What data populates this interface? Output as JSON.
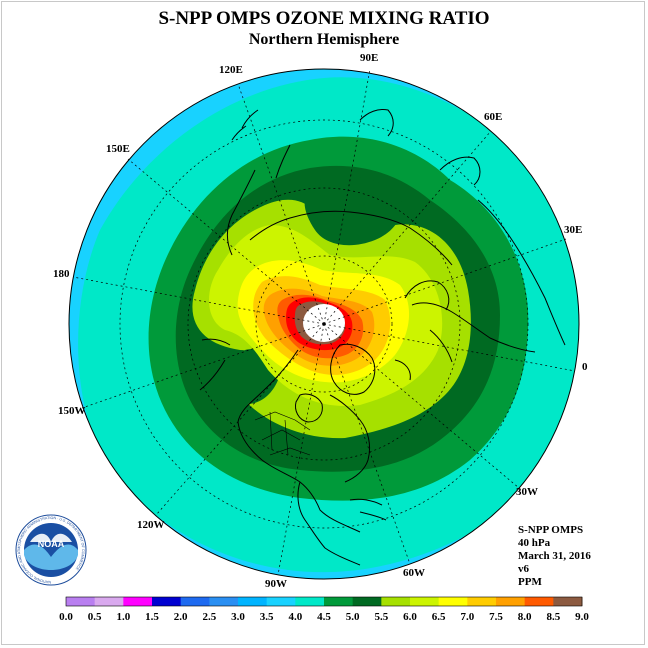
{
  "title": "S-NPP OMPS OZONE MIXING RATIO",
  "subtitle": "Northern Hemisphere",
  "longitude_labels": [
    {
      "id": "lon-90e",
      "text": "90E"
    },
    {
      "id": "lon-60e",
      "text": "60E"
    },
    {
      "id": "lon-30e",
      "text": "30E"
    },
    {
      "id": "lon-0",
      "text": "0"
    },
    {
      "id": "lon-30w",
      "text": "30W"
    },
    {
      "id": "lon-60w",
      "text": "60W"
    },
    {
      "id": "lon-90w",
      "text": "90W"
    },
    {
      "id": "lon-120w",
      "text": "120W"
    },
    {
      "id": "lon-150w",
      "text": "150W"
    },
    {
      "id": "lon-180",
      "text": "180"
    },
    {
      "id": "lon-150e",
      "text": "150E"
    },
    {
      "id": "lon-120e",
      "text": "120E"
    }
  ],
  "info": {
    "instrument": "S-NPP OMPS",
    "level": "40 hPa",
    "date": "March 31, 2016",
    "version": "v6",
    "units": "PPM"
  },
  "logo_text": "NOAA",
  "logo_ring_text": "NATIONAL OCEANIC AND ATMOSPHERIC ADMINISTRATION · U.S. DEPARTMENT OF COMMERCE",
  "colorbar": {
    "labels": [
      "0.0",
      "0.5",
      "1.0",
      "1.5",
      "2.0",
      "2.5",
      "3.0",
      "3.5",
      "4.0",
      "4.5",
      "5.0",
      "5.5",
      "6.0",
      "6.5",
      "7.0",
      "7.5",
      "8.0",
      "8.5",
      "9.0"
    ],
    "colors": [
      "#b97ff0",
      "#d9a9ee",
      "#ff00ff",
      "#0000d0",
      "#1e6af0",
      "#2a8ff2",
      "#00b4ff",
      "#18d2ff",
      "#00e8c8",
      "#009a3a",
      "#006a22",
      "#a6e000",
      "#ccf400",
      "#ffff00",
      "#ffcc00",
      "#ffa000",
      "#ff5a00",
      "#ff0000",
      "#8c5a40"
    ]
  }
}
